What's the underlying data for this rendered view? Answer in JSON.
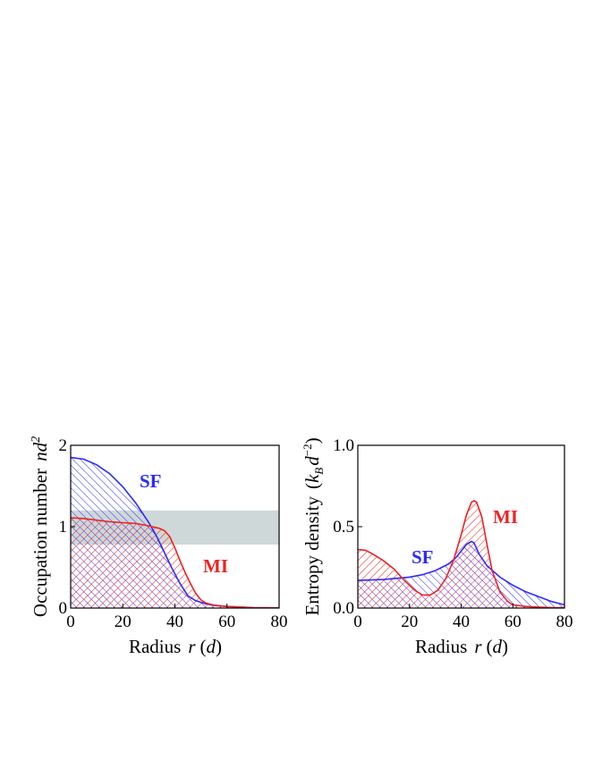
{
  "colors": {
    "sf": "#2a2aff",
    "mi": "#ee2222",
    "band": "#cfd8d8"
  },
  "chart_data": [
    {
      "type": "area",
      "xlabel_prefix": "Radius",
      "xlabel_var": "r",
      "xlabel_unit": "d",
      "ylabel_text": "Occupation number",
      "ylabel_var": "nd",
      "ylabel_sup": "2",
      "xlim": [
        0,
        80
      ],
      "ylim": [
        0,
        2
      ],
      "xticks": [
        0,
        20,
        40,
        60,
        80
      ],
      "yticks": [
        0,
        1,
        2
      ],
      "shaded_band": [
        0.78,
        1.2
      ],
      "series": [
        {
          "name": "SF",
          "x": [
            0,
            5,
            10,
            15,
            20,
            25,
            30,
            33,
            36,
            39,
            42,
            45,
            48,
            52,
            56,
            60,
            65,
            70,
            75,
            80
          ],
          "y": [
            1.85,
            1.83,
            1.76,
            1.65,
            1.49,
            1.29,
            1.05,
            0.88,
            0.68,
            0.48,
            0.3,
            0.15,
            0.09,
            0.05,
            0.03,
            0.02,
            0.012,
            0.006,
            0.003,
            0.002
          ]
        },
        {
          "name": "MI",
          "x": [
            0,
            5,
            10,
            15,
            20,
            25,
            30,
            34,
            36,
            38,
            40,
            42,
            44,
            46,
            48,
            50,
            52,
            55,
            60,
            65,
            70,
            75,
            80
          ],
          "y": [
            1.11,
            1.1,
            1.08,
            1.06,
            1.05,
            1.04,
            1.01,
            0.98,
            0.95,
            0.88,
            0.74,
            0.58,
            0.43,
            0.3,
            0.18,
            0.1,
            0.06,
            0.035,
            0.02,
            0.012,
            0.006,
            0.003,
            0.002
          ]
        }
      ]
    },
    {
      "type": "area",
      "xlabel_prefix": "Radius",
      "xlabel_var": "r",
      "xlabel_unit": "d",
      "ylabel_text": "Entropy density",
      "ylabel_kb": "k",
      "ylabel_kb_sub": "B",
      "ylabel_d": "d",
      "ylabel_d_sup": "−2",
      "xlim": [
        0,
        80
      ],
      "ylim": [
        0,
        1
      ],
      "xticks": [
        0,
        20,
        40,
        60,
        80
      ],
      "yticks": [
        "0.0",
        "0.5",
        "1.0"
      ],
      "series": [
        {
          "name": "SF",
          "x": [
            0,
            10,
            20,
            25,
            30,
            35,
            38,
            40,
            42,
            44,
            45,
            47,
            50,
            55,
            60,
            65,
            70,
            75,
            80
          ],
          "y": [
            0.17,
            0.175,
            0.19,
            0.205,
            0.23,
            0.27,
            0.31,
            0.35,
            0.39,
            0.41,
            0.4,
            0.33,
            0.26,
            0.19,
            0.14,
            0.1,
            0.07,
            0.04,
            0.02
          ]
        },
        {
          "name": "MI",
          "x": [
            0,
            3,
            6,
            10,
            14,
            18,
            22,
            25,
            28,
            31,
            34,
            37,
            40,
            42,
            44,
            45,
            46,
            48,
            50,
            52,
            55,
            58,
            60,
            65,
            70,
            75,
            80
          ],
          "y": [
            0.36,
            0.355,
            0.33,
            0.29,
            0.24,
            0.17,
            0.11,
            0.08,
            0.08,
            0.11,
            0.18,
            0.29,
            0.45,
            0.57,
            0.65,
            0.66,
            0.65,
            0.56,
            0.39,
            0.23,
            0.1,
            0.04,
            0.02,
            0.01,
            0.006,
            0.003,
            0.002
          ]
        }
      ]
    }
  ]
}
